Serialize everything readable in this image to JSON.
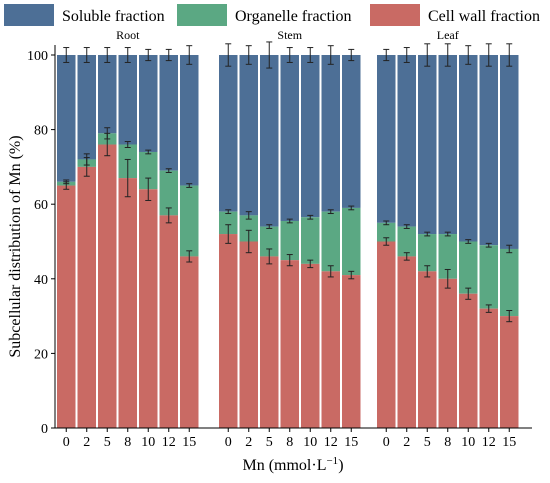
{
  "chart_data": {
    "type": "bar",
    "stacked": true,
    "ylabel": "Subcellular distribution of Mn (%)",
    "xlabel": "Mn (mmol·L",
    "xlabel_sup": "−1",
    "xlabel_close": ")",
    "ylim": [
      0,
      100
    ],
    "yticks": [
      "0",
      "20",
      "40",
      "60",
      "80",
      "100"
    ],
    "categories": [
      "0",
      "2",
      "5",
      "8",
      "10",
      "12",
      "15"
    ],
    "legend": [
      {
        "label": "Soluble fraction",
        "color": "#4d6f96"
      },
      {
        "label": "Organelle fraction",
        "color": "#5ba883"
      },
      {
        "label": "Cell wall fraction",
        "color": "#c96a64"
      }
    ],
    "groups": [
      {
        "title": "Root",
        "cell_wall": [
          65,
          70,
          76,
          67,
          64,
          57,
          46
        ],
        "organelle_top": [
          66,
          72,
          79,
          76,
          74,
          69,
          65
        ],
        "cw_err": [
          1,
          2.5,
          3,
          5,
          3,
          2,
          1.5
        ],
        "org_err": [
          0.5,
          1.5,
          1.5,
          0.8,
          0.5,
          0.5,
          0.5
        ],
        "top_err": [
          2,
          2,
          2,
          2,
          1.5,
          1.5,
          2.5
        ]
      },
      {
        "title": "Stem",
        "cell_wall": [
          52,
          50,
          46,
          45,
          44,
          42,
          41
        ],
        "organelle_top": [
          58,
          57,
          54,
          55.5,
          56.5,
          58,
          59
        ],
        "cw_err": [
          2.5,
          3,
          2,
          1.5,
          1,
          1.5,
          1
        ],
        "org_err": [
          0.5,
          1,
          0.5,
          0.5,
          0.5,
          0.5,
          0.5
        ],
        "top_err": [
          3,
          2.5,
          3.5,
          2,
          2,
          2.5,
          1.5
        ]
      },
      {
        "title": "Leaf",
        "cell_wall": [
          50,
          46,
          42,
          40,
          36,
          32,
          30
        ],
        "organelle_top": [
          55,
          54,
          52,
          52,
          50,
          49,
          48
        ],
        "cw_err": [
          1,
          1,
          1.5,
          2.5,
          1.5,
          1,
          1.5
        ],
        "org_err": [
          0.5,
          0.5,
          0.5,
          0.5,
          0.5,
          0.5,
          1
        ],
        "top_err": [
          1.5,
          2,
          3,
          3,
          2.5,
          3,
          3
        ]
      }
    ]
  }
}
